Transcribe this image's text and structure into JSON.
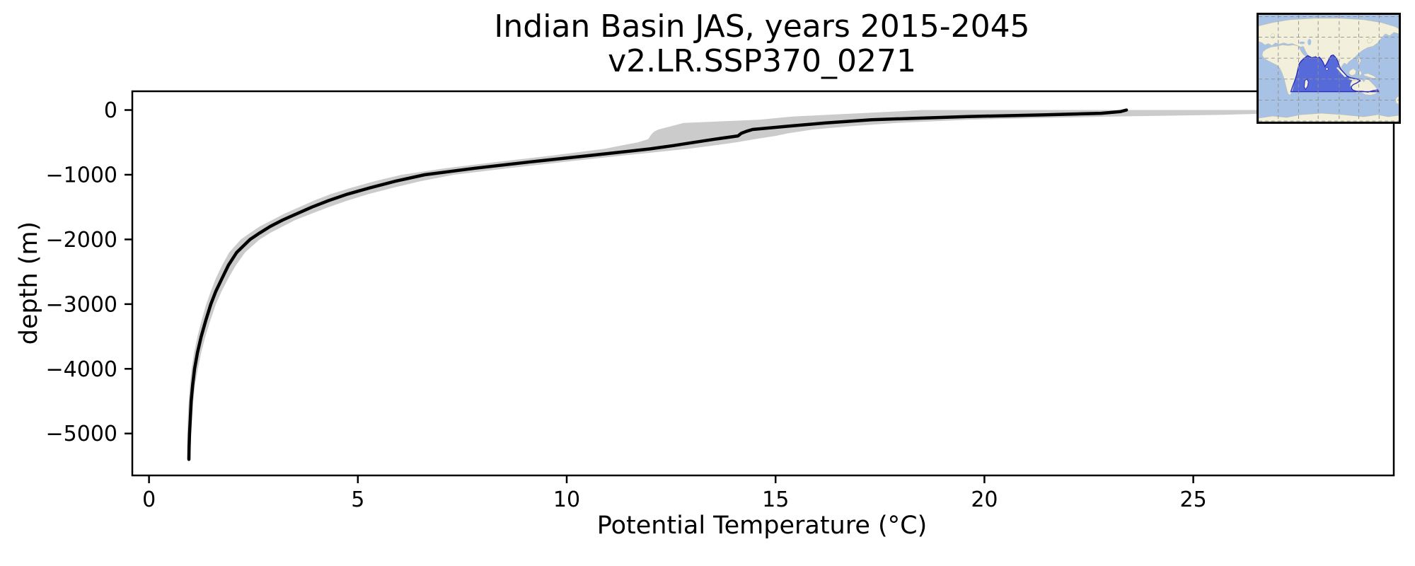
{
  "figure": {
    "background": "#ffffff"
  },
  "chart_data": {
    "type": "line",
    "title": "Indian Basin JAS, years 2015-2045\nv2.LR.SSP370_0271",
    "title_line1": "Indian Basin JAS, years 2015-2045",
    "title_line2": "v2.LR.SSP370_0271",
    "xlabel": "Potential Temperature (°C)",
    "ylabel": "depth (m)",
    "xlim": [
      -0.4,
      29.8
    ],
    "ylim": [
      290,
      -5648
    ],
    "grid": false,
    "legend": "none",
    "x_ticks": [
      0,
      5,
      10,
      15,
      20,
      25
    ],
    "x_tick_labels": [
      "0",
      "5",
      "10",
      "15",
      "20",
      "25"
    ],
    "y_ticks": [
      0,
      -1000,
      -2000,
      -3000,
      -4000,
      -5000
    ],
    "y_tick_labels": [
      "0",
      "−1000",
      "−2000",
      "−3000",
      "−4000",
      "−5000"
    ],
    "depth": [
      0,
      -25,
      -50,
      -75,
      -100,
      -150,
      -200,
      -250,
      -300,
      -330,
      -360,
      -400,
      -450,
      -500,
      -550,
      -600,
      -700,
      -800,
      -900,
      -1000,
      -1100,
      -1200,
      -1300,
      -1400,
      -1500,
      -1600,
      -1700,
      -1800,
      -1900,
      -2000,
      -2200,
      -2400,
      -2600,
      -2800,
      -3000,
      -3250,
      -3500,
      -3750,
      -4000,
      -4250,
      -4500,
      -4750,
      -5000,
      -5200,
      -5400
    ],
    "series": [
      {
        "name": "mean potential temperature profile",
        "role": "mean",
        "color": "#000000",
        "values": [
          23.4,
          23.25,
          22.8,
          21.4,
          19.6,
          17.3,
          16.2,
          15.3,
          14.45,
          14.3,
          14.18,
          14.1,
          13.55,
          13.05,
          12.55,
          12.0,
          10.6,
          9.15,
          7.8,
          6.6,
          5.9,
          5.3,
          4.75,
          4.3,
          3.9,
          3.55,
          3.2,
          2.9,
          2.65,
          2.42,
          2.1,
          1.9,
          1.75,
          1.6,
          1.48,
          1.36,
          1.25,
          1.16,
          1.09,
          1.045,
          1.01,
          0.99,
          0.97,
          0.96,
          0.955
        ]
      },
      {
        "name": "spread band (min-max envelope)",
        "role": "band",
        "color": "#cbcbcb",
        "t_min": [
          18.5,
          17.8,
          17.0,
          16.2,
          15.4,
          14.6,
          12.8,
          12.5,
          12.2,
          12.1,
          12.05,
          12.0,
          11.95,
          11.7,
          11.3,
          10.9,
          9.7,
          8.35,
          7.1,
          6.05,
          5.4,
          4.85,
          4.35,
          3.95,
          3.6,
          3.25,
          2.95,
          2.65,
          2.42,
          2.2,
          1.92,
          1.75,
          1.6,
          1.48,
          1.37,
          1.26,
          1.16,
          1.08,
          1.02,
          0.98,
          0.95,
          0.93,
          0.92,
          0.915,
          0.91
        ],
        "t_max": [
          28.0,
          27.6,
          27.0,
          25.6,
          23.0,
          19.6,
          17.9,
          16.8,
          15.9,
          15.6,
          15.3,
          15.0,
          14.5,
          14.05,
          13.5,
          12.9,
          11.4,
          9.95,
          8.6,
          7.3,
          6.5,
          5.85,
          5.25,
          4.75,
          4.3,
          3.9,
          3.5,
          3.2,
          2.9,
          2.65,
          2.3,
          2.08,
          1.9,
          1.74,
          1.6,
          1.47,
          1.35,
          1.25,
          1.17,
          1.1,
          1.06,
          1.03,
          1.01,
          1.0,
          0.99
        ]
      }
    ],
    "axis_color": "#000000",
    "line_width": 4.5
  },
  "inset_map": {
    "description": "World map inset highlighting the Indian Ocean basin region",
    "colors": {
      "ocean": "#a7c2e4",
      "land": "#f2efdb",
      "land_edge": "#c2bda0",
      "basin_fill": "#4f64d8",
      "basin_stroke": "#2d2dbb",
      "grid": "#8f8f8f",
      "border": "#000000"
    }
  }
}
